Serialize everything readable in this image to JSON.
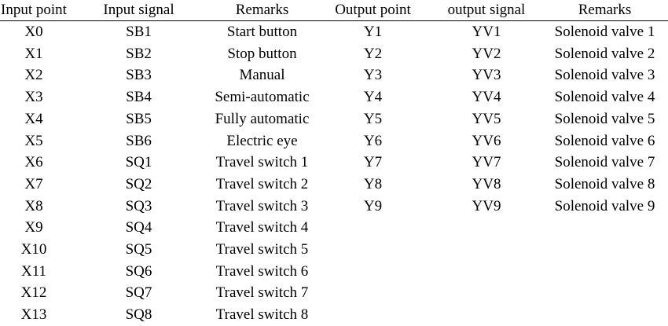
{
  "table": {
    "headers": [
      "Input point",
      "Input signal",
      "Remarks",
      "Output point",
      "output signal",
      "Remarks"
    ],
    "rows": [
      [
        "X0",
        "SB1",
        "Start button",
        "Y1",
        "YV1",
        "Solenoid valve 1"
      ],
      [
        "X1",
        "SB2",
        "Stop button",
        "Y2",
        "YV2",
        "Solenoid valve 2"
      ],
      [
        "X2",
        "SB3",
        "Manual",
        "Y3",
        "YV3",
        "Solenoid valve 3"
      ],
      [
        "X3",
        "SB4",
        "Semi-automatic",
        "Y4",
        "YV4",
        "Solenoid valve 4"
      ],
      [
        "X4",
        "SB5",
        "Fully automatic",
        "Y5",
        "YV5",
        "Solenoid valve 5"
      ],
      [
        "X5",
        "SB6",
        "Electric eye",
        "Y6",
        "YV6",
        "Solenoid valve 6"
      ],
      [
        "X6",
        "SQ1",
        "Travel switch 1",
        "Y7",
        "YV7",
        "Solenoid valve 7"
      ],
      [
        "X7",
        "SQ2",
        "Travel switch 2",
        "Y8",
        "YV8",
        "Solenoid valve 8"
      ],
      [
        "X8",
        "SQ3",
        "Travel switch 3",
        "Y9",
        "YV9",
        "Solenoid valve 9"
      ],
      [
        "X9",
        "SQ4",
        "Travel switch 4",
        "",
        "",
        ""
      ],
      [
        "X10",
        "SQ5",
        "Travel switch 5",
        "",
        "",
        ""
      ],
      [
        "X11",
        "SQ6",
        "Travel switch 6",
        "",
        "",
        ""
      ],
      [
        "X12",
        "SQ7",
        "Travel switch 7",
        "",
        "",
        ""
      ],
      [
        "X13",
        "SQ8",
        "Travel switch 8",
        "",
        "",
        ""
      ]
    ]
  }
}
